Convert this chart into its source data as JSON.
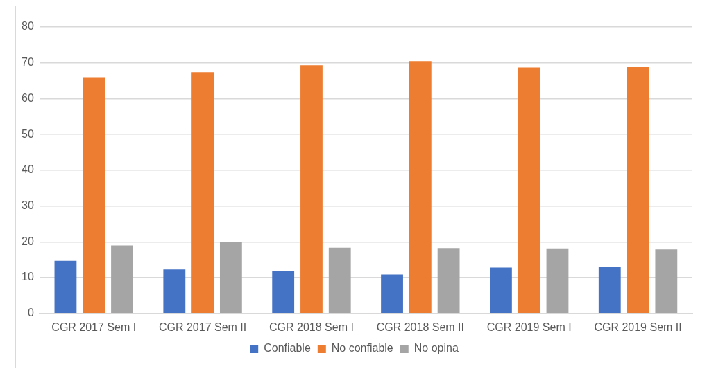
{
  "chart_data": {
    "type": "bar",
    "categories": [
      "CGR 2017 Sem I",
      "CGR 2017 Sem II",
      "CGR 2018 Sem I",
      "CGR 2018 Sem II",
      "CGR 2019 Sem I",
      "CGR 2019 Sem II"
    ],
    "series": [
      {
        "name": "Confiable",
        "color": "#4472c4",
        "values": [
          14.7,
          12.3,
          11.9,
          10.9,
          12.8,
          13.0
        ]
      },
      {
        "name": "No confiable",
        "color": "#ed7d31",
        "values": [
          66.0,
          67.4,
          69.3,
          70.5,
          68.7,
          68.8
        ]
      },
      {
        "name": "No opina",
        "color": "#a5a5a5",
        "values": [
          19.0,
          19.9,
          18.4,
          18.3,
          18.2,
          17.9
        ]
      }
    ],
    "ylim": [
      0,
      80
    ],
    "yticks": [
      0,
      10,
      20,
      30,
      40,
      50,
      60,
      70,
      80
    ],
    "grid": "y",
    "legend": "bottom"
  }
}
